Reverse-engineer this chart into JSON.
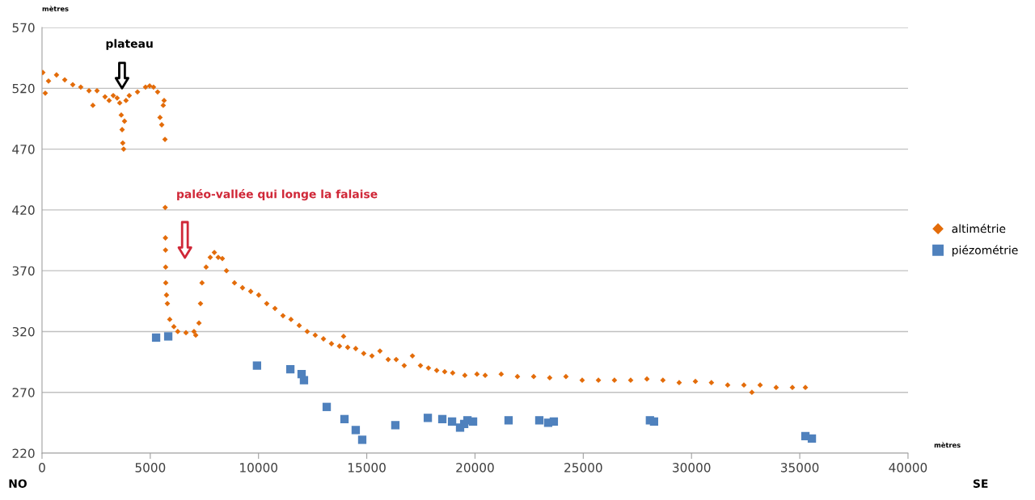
{
  "chart_data": {
    "type": "scatter",
    "xlabel": "mètres",
    "ylabel": "mètres",
    "xlim": [
      0,
      40000
    ],
    "xticks": [
      0,
      5000,
      10000,
      15000,
      20000,
      25000,
      30000,
      35000,
      40000
    ],
    "ylim": [
      220,
      570
    ],
    "yticks": [
      220,
      270,
      320,
      370,
      420,
      470,
      520,
      570
    ],
    "grid": "y",
    "legend": "right",
    "annotations": [
      "plateau",
      "paléo-vallée qui longe la falaise",
      "NO",
      "SE"
    ],
    "series": [
      {
        "name": "altimétrie",
        "color": "#e36c0a",
        "marker": "diamond",
        "x": [
          37,
          150,
          300,
          670,
          1050,
          1420,
          1790,
          2170,
          2350,
          2540,
          2910,
          3100,
          3290,
          3470,
          3590,
          3660,
          3700,
          3730,
          3770,
          3810,
          3880,
          4030,
          4410,
          4780,
          4970,
          5150,
          5340,
          5450,
          5530,
          5600,
          5640,
          5680,
          5690,
          5700,
          5705,
          5710,
          5715,
          5750,
          5790,
          5900,
          6090,
          6270,
          6650,
          7020,
          7100,
          7250,
          7320,
          7390,
          7580,
          7770,
          7960,
          8140,
          8330,
          8520,
          8890,
          9260,
          9640,
          10010,
          10380,
          10760,
          11130,
          11500,
          11880,
          12250,
          12620,
          13000,
          13370,
          13740,
          13930,
          14120,
          14490,
          14860,
          15240,
          15610,
          15990,
          16360,
          16730,
          17110,
          17480,
          17850,
          18230,
          18600,
          18970,
          19530,
          20090,
          20470,
          21210,
          21960,
          22710,
          23450,
          24200,
          24950,
          25700,
          26440,
          27190,
          27940,
          28680,
          29430,
          30180,
          30920,
          31670,
          32420,
          32790,
          33170,
          33910,
          34660,
          35260
        ],
        "values": [
          533,
          516,
          526,
          531,
          527,
          523,
          521,
          518,
          506,
          518,
          513,
          510,
          514,
          512,
          508,
          498,
          486,
          475,
          470,
          493,
          510,
          514,
          517,
          521,
          522,
          521,
          517,
          496,
          490,
          506,
          510,
          478,
          422,
          397,
          387,
          373,
          360,
          350,
          343,
          330,
          324,
          320,
          319,
          320,
          317,
          327,
          343,
          360,
          373,
          381,
          385,
          381,
          380,
          370,
          360,
          356,
          353,
          350,
          343,
          339,
          333,
          330,
          325,
          320,
          317,
          314,
          310,
          308,
          316,
          307,
          306,
          302,
          300,
          304,
          297,
          297,
          292,
          300,
          292,
          290,
          288,
          287,
          286,
          284,
          285,
          284,
          285,
          283,
          283,
          282,
          283,
          280,
          280,
          280,
          280,
          281,
          280,
          278,
          279,
          278,
          276,
          276,
          270,
          276,
          274,
          274,
          274
        ]
      },
      {
        "name": "piézométrie",
        "color": "#4f81bd",
        "marker": "square",
        "x": [
          5270,
          5830,
          9930,
          11470,
          11990,
          12100,
          13150,
          13970,
          14490,
          14790,
          16320,
          17820,
          18490,
          18940,
          19310,
          19500,
          19650,
          19910,
          21550,
          22970,
          23380,
          23640,
          28080,
          28270,
          35260,
          35560
        ],
        "values": [
          315,
          316,
          292,
          289,
          285,
          280,
          258,
          248,
          239,
          231,
          243,
          249,
          248,
          246,
          241,
          244,
          247,
          246,
          247,
          247,
          245,
          246,
          247,
          246,
          234,
          232
        ]
      }
    ]
  }
}
